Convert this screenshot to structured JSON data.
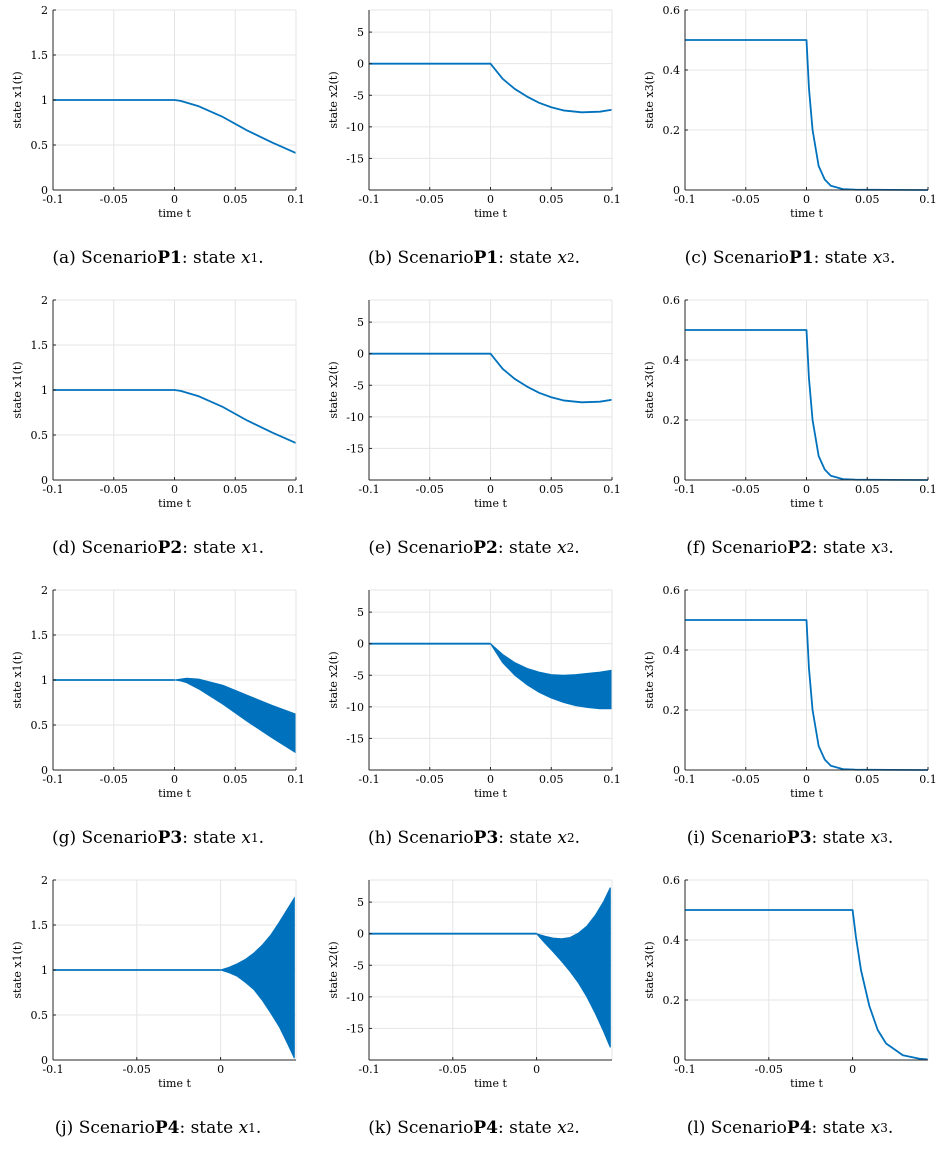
{
  "chart_data": [
    {
      "id": "a",
      "type": "line",
      "caption_prefix": "(a) Scenario ",
      "scenario": "P1",
      "caption_mid": ": state ",
      "var": "x",
      "sub": "1",
      "caption_suffix": ".",
      "xlabel": "time t",
      "ylabel": "state x1(t)",
      "xlim": [
        -0.1,
        0.1
      ],
      "ylim": [
        0,
        2
      ],
      "xticks": [
        -0.1,
        -0.05,
        0,
        0.05,
        0.1
      ],
      "xtick_labels": [
        "-0.1",
        "-0.05",
        "0",
        "0.05",
        "0.1"
      ],
      "yticks": [
        0,
        0.5,
        1,
        1.5,
        2
      ],
      "ytick_labels": [
        "0",
        "0.5",
        "1",
        "1.5",
        "2"
      ],
      "series": [
        {
          "x": [
            -0.1,
            0,
            0.005,
            0.02,
            0.04,
            0.06,
            0.08,
            0.1
          ],
          "y": [
            1,
            1,
            0.99,
            0.93,
            0.81,
            0.66,
            0.53,
            0.41
          ]
        }
      ]
    },
    {
      "id": "b",
      "type": "line",
      "caption_prefix": "(b) Scenario ",
      "scenario": "P1",
      "caption_mid": ": state ",
      "var": "x",
      "sub": "2",
      "caption_suffix": ".",
      "xlabel": "time t",
      "ylabel": "state x2(t)",
      "xlim": [
        -0.1,
        0.1
      ],
      "ylim": [
        -20,
        8.5
      ],
      "xticks": [
        -0.1,
        -0.05,
        0,
        0.05,
        0.1
      ],
      "xtick_labels": [
        "-0.1",
        "-0.05",
        "0",
        "0.05",
        "0.1"
      ],
      "yticks": [
        -15,
        -10,
        -5,
        0,
        5
      ],
      "ytick_labels": [
        "-15",
        "-10",
        "-5",
        "0",
        "5"
      ],
      "series": [
        {
          "x": [
            -0.1,
            0,
            0.01,
            0.02,
            0.03,
            0.04,
            0.05,
            0.06,
            0.075,
            0.09,
            0.1
          ],
          "y": [
            0,
            0,
            -2.4,
            -4.0,
            -5.2,
            -6.2,
            -6.9,
            -7.4,
            -7.7,
            -7.6,
            -7.3
          ]
        }
      ]
    },
    {
      "id": "c",
      "type": "line",
      "caption_prefix": "(c) Scenario ",
      "scenario": "P1",
      "caption_mid": ": state ",
      "var": "x",
      "sub": "3",
      "caption_suffix": ".",
      "xlabel": "time t",
      "ylabel": "state x3(t)",
      "xlim": [
        -0.1,
        0.1
      ],
      "ylim": [
        0,
        0.6
      ],
      "xticks": [
        -0.1,
        -0.05,
        0,
        0.05,
        0.1
      ],
      "xtick_labels": [
        "-0.1",
        "-0.05",
        "0",
        "0.05",
        "0.1"
      ],
      "yticks": [
        0,
        0.2,
        0.4,
        0.6
      ],
      "ytick_labels": [
        "0",
        "0.2",
        "0.4",
        "0.6"
      ],
      "series": [
        {
          "x": [
            -0.1,
            0,
            0.002,
            0.005,
            0.01,
            0.015,
            0.02,
            0.03,
            0.04,
            0.1
          ],
          "y": [
            0.5,
            0.5,
            0.34,
            0.2,
            0.08,
            0.035,
            0.014,
            0.003,
            0.001,
            0
          ]
        }
      ]
    },
    {
      "id": "d",
      "type": "line",
      "caption_prefix": "(d) Scenario ",
      "scenario": "P2",
      "caption_mid": ": state ",
      "var": "x",
      "sub": "1",
      "caption_suffix": ".",
      "xlabel": "time t",
      "ylabel": "state x1(t)",
      "xlim": [
        -0.1,
        0.1
      ],
      "ylim": [
        0,
        2
      ],
      "xticks": [
        -0.1,
        -0.05,
        0,
        0.05,
        0.1
      ],
      "xtick_labels": [
        "-0.1",
        "-0.05",
        "0",
        "0.05",
        "0.1"
      ],
      "yticks": [
        0,
        0.5,
        1,
        1.5,
        2
      ],
      "ytick_labels": [
        "0",
        "0.5",
        "1",
        "1.5",
        "2"
      ],
      "series": [
        {
          "x": [
            -0.1,
            0,
            0.005,
            0.02,
            0.04,
            0.06,
            0.08,
            0.1
          ],
          "y": [
            1,
            1,
            0.99,
            0.93,
            0.81,
            0.66,
            0.53,
            0.41
          ]
        }
      ]
    },
    {
      "id": "e",
      "type": "line",
      "caption_prefix": "(e) Scenario ",
      "scenario": "P2",
      "caption_mid": ": state ",
      "var": "x",
      "sub": "2",
      "caption_suffix": ".",
      "xlabel": "time t",
      "ylabel": "state x2(t)",
      "xlim": [
        -0.1,
        0.1
      ],
      "ylim": [
        -20,
        8.5
      ],
      "xticks": [
        -0.1,
        -0.05,
        0,
        0.05,
        0.1
      ],
      "xtick_labels": [
        "-0.1",
        "-0.05",
        "0",
        "0.05",
        "0.1"
      ],
      "yticks": [
        -15,
        -10,
        -5,
        0,
        5
      ],
      "ytick_labels": [
        "-15",
        "-10",
        "-5",
        "0",
        "5"
      ],
      "series": [
        {
          "x": [
            -0.1,
            0,
            0.01,
            0.02,
            0.03,
            0.04,
            0.05,
            0.06,
            0.075,
            0.09,
            0.1
          ],
          "y": [
            0,
            0,
            -2.4,
            -4.0,
            -5.2,
            -6.2,
            -6.9,
            -7.4,
            -7.7,
            -7.6,
            -7.3
          ]
        }
      ]
    },
    {
      "id": "f",
      "type": "line",
      "caption_prefix": "(f) Scenario ",
      "scenario": "P2",
      "caption_mid": ": state ",
      "var": "x",
      "sub": "3",
      "caption_suffix": ".",
      "xlabel": "time t",
      "ylabel": "state x3(t)",
      "xlim": [
        -0.1,
        0.1
      ],
      "ylim": [
        0,
        0.6
      ],
      "xticks": [
        -0.1,
        -0.05,
        0,
        0.05,
        0.1
      ],
      "xtick_labels": [
        "-0.1",
        "-0.05",
        "0",
        "0.05",
        "0.1"
      ],
      "yticks": [
        0,
        0.2,
        0.4,
        0.6
      ],
      "ytick_labels": [
        "0",
        "0.2",
        "0.4",
        "0.6"
      ],
      "series": [
        {
          "x": [
            -0.1,
            0,
            0.002,
            0.005,
            0.01,
            0.015,
            0.02,
            0.03,
            0.04,
            0.1
          ],
          "y": [
            0.5,
            0.5,
            0.34,
            0.2,
            0.08,
            0.035,
            0.014,
            0.003,
            0.001,
            0
          ]
        }
      ]
    },
    {
      "id": "g",
      "type": "area",
      "caption_prefix": "(g) Scenario ",
      "scenario": "P3",
      "caption_mid": ": state ",
      "var": "x",
      "sub": "1",
      "caption_suffix": ".",
      "xlabel": "time t",
      "ylabel": "state x1(t)",
      "xlim": [
        -0.1,
        0.1
      ],
      "ylim": [
        0,
        2
      ],
      "xticks": [
        -0.1,
        -0.05,
        0,
        0.05,
        0.1
      ],
      "xtick_labels": [
        "-0.1",
        "-0.05",
        "0",
        "0.05",
        "0.1"
      ],
      "yticks": [
        0,
        0.5,
        1,
        1.5,
        2
      ],
      "ytick_labels": [
        "0",
        "0.5",
        "1",
        "1.5",
        "2"
      ],
      "series": [
        {
          "x": [
            -0.1,
            0,
            0.005,
            0.01,
            0.02,
            0.04,
            0.06,
            0.08,
            0.1
          ],
          "y": [
            1,
            1,
            1,
            1,
            1,
            1,
            1,
            1,
            1
          ]
        }
      ],
      "band": {
        "x": [
          0,
          0.005,
          0.01,
          0.02,
          0.04,
          0.06,
          0.08,
          0.1
        ],
        "upper": [
          1,
          1.01,
          1.02,
          1.01,
          0.94,
          0.83,
          0.72,
          0.62
        ],
        "lower": [
          1,
          0.99,
          0.97,
          0.9,
          0.73,
          0.54,
          0.36,
          0.19
        ]
      },
      "band_only_after": 0
    },
    {
      "id": "h",
      "type": "area",
      "caption_prefix": "(h) Scenario ",
      "scenario": "P3",
      "caption_mid": ": state ",
      "var": "x",
      "sub": "2",
      "caption_suffix": ".",
      "xlabel": "time t",
      "ylabel": "state x2(t)",
      "xlim": [
        -0.1,
        0.1
      ],
      "ylim": [
        -20,
        8.5
      ],
      "xticks": [
        -0.1,
        -0.05,
        0,
        0.05,
        0.1
      ],
      "xtick_labels": [
        "-0.1",
        "-0.05",
        "0",
        "0.05",
        "0.1"
      ],
      "yticks": [
        -15,
        -10,
        -5,
        0,
        5
      ],
      "ytick_labels": [
        "-15",
        "-10",
        "-5",
        "0",
        "5"
      ],
      "series": [
        {
          "x": [
            -0.1,
            0
          ],
          "y": [
            0,
            0
          ]
        }
      ],
      "band": {
        "x": [
          0,
          0.01,
          0.02,
          0.03,
          0.04,
          0.05,
          0.06,
          0.07,
          0.08,
          0.09,
          0.1
        ],
        "upper": [
          0,
          -1.7,
          -3.0,
          -3.9,
          -4.5,
          -4.9,
          -5.0,
          -4.9,
          -4.7,
          -4.5,
          -4.2
        ],
        "lower": [
          0,
          -3.0,
          -5.0,
          -6.5,
          -7.7,
          -8.6,
          -9.3,
          -9.8,
          -10.1,
          -10.3,
          -10.3
        ]
      }
    },
    {
      "id": "i",
      "type": "line",
      "caption_prefix": "(i) Scenario ",
      "scenario": "P3",
      "caption_mid": ": state ",
      "var": "x",
      "sub": "3",
      "caption_suffix": ".",
      "xlabel": "time t",
      "ylabel": "state x3(t)",
      "xlim": [
        -0.1,
        0.1
      ],
      "ylim": [
        0,
        0.6
      ],
      "xticks": [
        -0.1,
        -0.05,
        0,
        0.05,
        0.1
      ],
      "xtick_labels": [
        "-0.1",
        "-0.05",
        "0",
        "0.05",
        "0.1"
      ],
      "yticks": [
        0,
        0.2,
        0.4,
        0.6
      ],
      "ytick_labels": [
        "0",
        "0.2",
        "0.4",
        "0.6"
      ],
      "series": [
        {
          "x": [
            -0.1,
            0,
            0.002,
            0.005,
            0.01,
            0.015,
            0.02,
            0.03,
            0.04,
            0.1
          ],
          "y": [
            0.5,
            0.5,
            0.34,
            0.2,
            0.08,
            0.035,
            0.014,
            0.003,
            0.001,
            0
          ]
        }
      ]
    },
    {
      "id": "j",
      "type": "area",
      "caption_prefix": "(j) Scenario ",
      "scenario": "P4",
      "caption_mid": ": state ",
      "var": "x",
      "sub": "1",
      "caption_suffix": ".",
      "xlabel": "time t",
      "ylabel": "state x1(t)",
      "xlim": [
        -0.1,
        0.045
      ],
      "ylim": [
        0,
        2
      ],
      "xticks": [
        -0.1,
        -0.05,
        0
      ],
      "xtick_labels": [
        "-0.1",
        "-0.05",
        "0"
      ],
      "yticks": [
        0,
        0.5,
        1,
        1.5,
        2
      ],
      "ytick_labels": [
        "0",
        "0.5",
        "1",
        "1.5",
        "2"
      ],
      "series": [
        {
          "x": [
            -0.1,
            0
          ],
          "y": [
            1,
            1
          ]
        }
      ],
      "band": {
        "x": [
          0,
          0.005,
          0.01,
          0.015,
          0.02,
          0.025,
          0.03,
          0.035,
          0.04,
          0.044
        ],
        "upper": [
          1,
          1.03,
          1.07,
          1.12,
          1.19,
          1.28,
          1.39,
          1.53,
          1.68,
          1.8
        ],
        "lower": [
          1,
          0.97,
          0.93,
          0.86,
          0.78,
          0.66,
          0.52,
          0.37,
          0.18,
          0.02
        ]
      }
    },
    {
      "id": "k",
      "type": "area",
      "caption_prefix": "(k) Scenario ",
      "scenario": "P4",
      "caption_mid": ": state ",
      "var": "x",
      "sub": "2",
      "caption_suffix": ".",
      "xlabel": "time t",
      "ylabel": "state x2(t)",
      "xlim": [
        -0.1,
        0.045
      ],
      "ylim": [
        -20,
        8.5
      ],
      "xticks": [
        -0.1,
        -0.05,
        0
      ],
      "xtick_labels": [
        "-0.1",
        "-0.05",
        "0"
      ],
      "yticks": [
        -15,
        -10,
        -5,
        0,
        5
      ],
      "ytick_labels": [
        "-15",
        "-10",
        "-5",
        "0",
        "5"
      ],
      "series": [
        {
          "x": [
            -0.1,
            0
          ],
          "y": [
            0,
            0
          ]
        }
      ],
      "band": {
        "x": [
          0,
          0.005,
          0.01,
          0.015,
          0.02,
          0.025,
          0.03,
          0.035,
          0.04,
          0.044
        ],
        "upper": [
          0,
          -0.4,
          -0.7,
          -0.8,
          -0.6,
          0.1,
          1.2,
          2.9,
          5.1,
          7.3
        ],
        "lower": [
          0,
          -1.5,
          -2.9,
          -4.4,
          -6.0,
          -7.8,
          -10.0,
          -12.6,
          -15.5,
          -18.0
        ]
      }
    },
    {
      "id": "l",
      "type": "line",
      "caption_prefix": "(l) Scenario ",
      "scenario": "P4",
      "caption_mid": ": state ",
      "var": "x",
      "sub": "3",
      "caption_suffix": ".",
      "xlabel": "time t",
      "ylabel": "state x3(t)",
      "xlim": [
        -0.1,
        0.045
      ],
      "ylim": [
        0,
        0.6
      ],
      "xticks": [
        -0.1,
        -0.05,
        0
      ],
      "xtick_labels": [
        "-0.1",
        "-0.05",
        "0"
      ],
      "yticks": [
        0,
        0.2,
        0.4,
        0.6
      ],
      "ytick_labels": [
        "0",
        "0.2",
        "0.4",
        "0.6"
      ],
      "series": [
        {
          "x": [
            -0.1,
            0,
            0.002,
            0.005,
            0.01,
            0.015,
            0.02,
            0.03,
            0.04,
            0.045
          ],
          "y": [
            0.5,
            0.5,
            0.41,
            0.3,
            0.18,
            0.1,
            0.055,
            0.016,
            0.004,
            0.002
          ]
        }
      ]
    }
  ],
  "colors": {
    "line": "#0072BD",
    "grid": "#e5e5e5",
    "axis": "#262626"
  }
}
